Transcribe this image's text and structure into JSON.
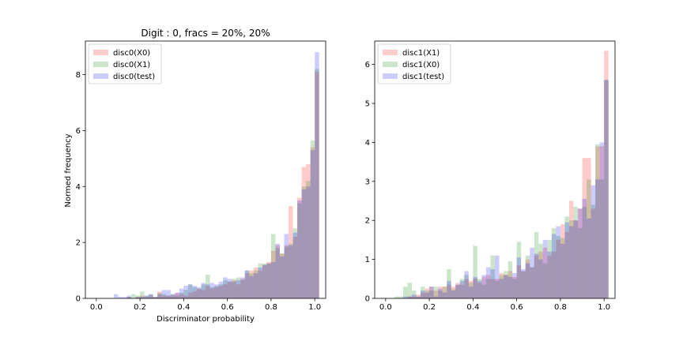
{
  "chart_data": [
    {
      "type": "histogram",
      "title": "Digit : 0, fracs = 20%, 20%",
      "xlabel": "Discriminator probability",
      "ylabel": "Normed frequency",
      "xlim": [
        -0.05,
        1.05
      ],
      "ylim": [
        0,
        9.2
      ],
      "xticks": [
        "0.0",
        "0.2",
        "0.4",
        "0.6",
        "0.8",
        "1.0"
      ],
      "yticks": [
        "0",
        "2",
        "4",
        "6",
        "8"
      ],
      "legend_position": "top-left",
      "bin_width": 0.02,
      "bin_start": 0.0,
      "series": [
        {
          "name": "disc0(X0)",
          "color": "#ff0000",
          "alpha": 0.2,
          "values": [
            0,
            0,
            0,
            0,
            0,
            0,
            0,
            0.05,
            0,
            0.05,
            0.1,
            0.05,
            0.1,
            0.05,
            0.25,
            0.1,
            0.1,
            0.1,
            0.2,
            0.15,
            0.1,
            0.2,
            0.25,
            0.35,
            0.3,
            0.45,
            0.35,
            0.4,
            0.45,
            0.5,
            0.6,
            0.65,
            0.5,
            0.7,
            0.9,
            1.0,
            1.1,
            1.0,
            1.2,
            1.3,
            1.7,
            1.9,
            1.6,
            1.9,
            3.3,
            2.2,
            3.6,
            4.7,
            4.8,
            5.4,
            8.1
          ]
        },
        {
          "name": "disc0(X1)",
          "color": "#008000",
          "alpha": 0.2,
          "values": [
            0,
            0,
            0,
            0,
            0,
            0,
            0,
            0.05,
            0.15,
            0.1,
            0.25,
            0.1,
            0.15,
            0.05,
            0.2,
            0.15,
            0.1,
            0.15,
            0.1,
            0.2,
            0.3,
            0.5,
            0.4,
            0.35,
            0.5,
            0.85,
            0.4,
            0.45,
            0.5,
            0.65,
            0.6,
            0.7,
            0.75,
            0.65,
            1.0,
            0.9,
            1.0,
            1.25,
            1.25,
            1.25,
            2.3,
            1.8,
            1.6,
            1.85,
            1.95,
            2.5,
            3.4,
            4.0,
            4.2,
            5.65,
            8.2
          ]
        },
        {
          "name": "disc0(test)",
          "color": "#0000ff",
          "alpha": 0.2,
          "values": [
            0,
            0,
            0,
            0,
            0.15,
            0.05,
            0.05,
            0.1,
            0,
            0.05,
            0.05,
            0.1,
            0.15,
            0.05,
            0.15,
            0.3,
            0.3,
            0.15,
            0.2,
            0.35,
            0.45,
            0.5,
            0.45,
            0.4,
            0.55,
            0.5,
            0.55,
            0.5,
            0.6,
            0.75,
            0.7,
            0.6,
            0.65,
            0.75,
            1.0,
            0.8,
            0.9,
            1.1,
            1.2,
            1.25,
            1.3,
            1.95,
            1.5,
            2.3,
            1.9,
            2.35,
            3.5,
            3.9,
            4.0,
            5.3,
            8.8
          ]
        }
      ]
    },
    {
      "type": "histogram",
      "title": "",
      "xlabel": "",
      "ylabel": "",
      "xlim": [
        -0.05,
        1.05
      ],
      "ylim": [
        0,
        6.6
      ],
      "xticks": [
        "0.0",
        "0.2",
        "0.4",
        "0.6",
        "0.8",
        "1.0"
      ],
      "yticks": [
        "0",
        "1",
        "2",
        "3",
        "4",
        "5",
        "6"
      ],
      "legend_position": "top-left",
      "bin_width": 0.02,
      "bin_start": 0.0,
      "series": [
        {
          "name": "disc1(X1)",
          "color": "#ff0000",
          "alpha": 0.2,
          "values": [
            0,
            0,
            0,
            0,
            0,
            0.05,
            0.05,
            0.1,
            0.15,
            0.25,
            0.3,
            0.2,
            0.3,
            0.3,
            0.35,
            0.3,
            0.4,
            0.35,
            0.5,
            0.45,
            0.5,
            0.4,
            0.55,
            0.6,
            0.5,
            0.5,
            0.65,
            0.6,
            0.7,
            0.55,
            0.85,
            0.7,
            1.0,
            0.8,
            1.1,
            1.2,
            1.3,
            1.1,
            1.2,
            1.5,
            1.9,
            1.7,
            2.5,
            2.0,
            2.3,
            3.6,
            3.6,
            2.3,
            3.9,
            3.9,
            6.35
          ]
        },
        {
          "name": "disc1(X0)",
          "color": "#008000",
          "alpha": 0.2,
          "values": [
            0,
            0,
            0.05,
            0.05,
            0.3,
            0.4,
            0.2,
            0.05,
            0.3,
            0.2,
            0.2,
            0.3,
            0.2,
            0.3,
            0.75,
            0.25,
            0.35,
            0.5,
            0.6,
            0.4,
            1.35,
            0.5,
            0.35,
            0.5,
            1.1,
            0.45,
            0.6,
            0.7,
            0.95,
            0.5,
            1.45,
            0.7,
            1.1,
            0.8,
            1.7,
            1.4,
            0.9,
            1.5,
            1.8,
            1.6,
            1.55,
            2.1,
            2.0,
            2.35,
            1.8,
            2.35,
            3.05,
            2.4,
            3.95,
            3.05,
            5.6
          ]
        },
        {
          "name": "disc1(test)",
          "color": "#0000ff",
          "alpha": 0.2,
          "values": [
            0,
            0,
            0,
            0,
            0.05,
            0.05,
            0.1,
            0.05,
            0.2,
            0.15,
            0.3,
            0.05,
            0.25,
            0.15,
            0.45,
            0.2,
            0.35,
            0.45,
            0.7,
            0.3,
            0.55,
            0.45,
            0.6,
            0.8,
            0.75,
            1.1,
            0.5,
            0.6,
            0.55,
            0.65,
            1.05,
            0.75,
            0.9,
            1.3,
            1.15,
            1.0,
            1.5,
            1.2,
            1.65,
            1.85,
            1.4,
            1.95,
            1.85,
            2.0,
            2.3,
            2.55,
            2.05,
            2.9,
            3.05,
            4.0,
            5.6
          ]
        }
      ]
    }
  ]
}
